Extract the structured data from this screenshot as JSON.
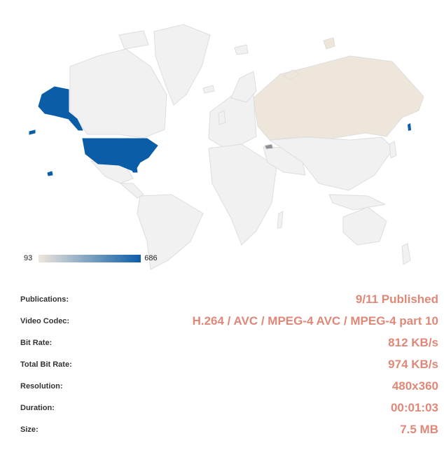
{
  "map": {
    "colors": {
      "low": "#efe6db",
      "high": "#0b5da8",
      "empty": "#f1f1f1",
      "border": "#dddddd"
    },
    "highlighted_regions": [
      {
        "name": "United States",
        "level": "high"
      },
      {
        "name": "Russia",
        "level": "low"
      },
      {
        "name": "Georgia",
        "level": "mid"
      }
    ],
    "legend": {
      "min": "93",
      "max": "686"
    }
  },
  "details": [
    {
      "label": "Publications:",
      "value": "9/11 Published"
    },
    {
      "label": "Video Codec:",
      "value": "H.264 / AVC / MPEG-4 AVC / MPEG-4 part 10"
    },
    {
      "label": "Bit Rate:",
      "value": "812 KB/s"
    },
    {
      "label": "Total Bit Rate:",
      "value": "974 KB/s"
    },
    {
      "label": "Resolution:",
      "value": "480x360"
    },
    {
      "label": "Duration:",
      "value": "00:01:03"
    },
    {
      "label": "Size:",
      "value": "7.5 MB"
    }
  ]
}
